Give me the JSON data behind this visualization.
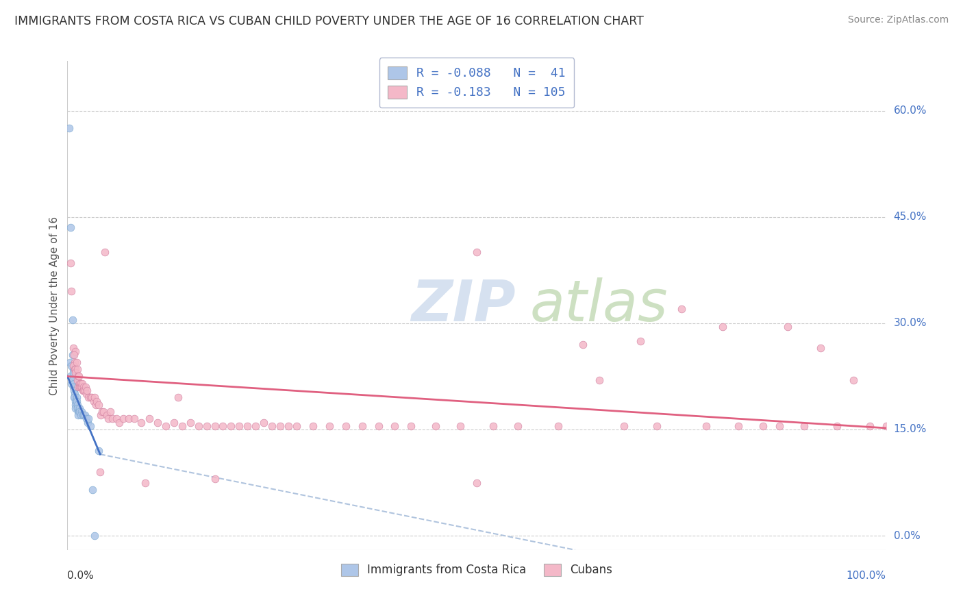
{
  "title": "IMMIGRANTS FROM COSTA RICA VS CUBAN CHILD POVERTY UNDER THE AGE OF 16 CORRELATION CHART",
  "source": "Source: ZipAtlas.com",
  "ylabel": "Child Poverty Under the Age of 16",
  "xlim": [
    0.0,
    1.0
  ],
  "ylim": [
    -0.02,
    0.67
  ],
  "yticks": [
    0.0,
    0.15,
    0.3,
    0.45,
    0.6
  ],
  "ytick_labels": [
    "0.0%",
    "15.0%",
    "30.0%",
    "45.0%",
    "60.0%"
  ],
  "xtick_labels": [
    "0.0%",
    "100.0%"
  ],
  "legend_labels": [
    "Immigrants from Costa Rica",
    "Cubans"
  ],
  "blue_R": -0.088,
  "blue_N": 41,
  "pink_R": -0.183,
  "pink_N": 105,
  "blue_color": "#aec6e8",
  "pink_color": "#f4b8c8",
  "blue_line_color": "#4472c4",
  "pink_line_color": "#e06080",
  "dash_color": "#b0c4de",
  "background_color": "#ffffff",
  "grid_color": "#cccccc",
  "blue_scatter": [
    [
      0.002,
      0.575
    ],
    [
      0.004,
      0.435
    ],
    [
      0.006,
      0.305
    ],
    [
      0.003,
      0.245
    ],
    [
      0.006,
      0.255
    ],
    [
      0.004,
      0.225
    ],
    [
      0.007,
      0.235
    ],
    [
      0.005,
      0.215
    ],
    [
      0.005,
      0.24
    ],
    [
      0.007,
      0.23
    ],
    [
      0.006,
      0.22
    ],
    [
      0.008,
      0.215
    ],
    [
      0.007,
      0.21
    ],
    [
      0.008,
      0.205
    ],
    [
      0.009,
      0.2
    ],
    [
      0.009,
      0.195
    ],
    [
      0.008,
      0.195
    ],
    [
      0.01,
      0.19
    ],
    [
      0.01,
      0.185
    ],
    [
      0.011,
      0.195
    ],
    [
      0.01,
      0.18
    ],
    [
      0.011,
      0.19
    ],
    [
      0.012,
      0.185
    ],
    [
      0.012,
      0.18
    ],
    [
      0.013,
      0.175
    ],
    [
      0.014,
      0.175
    ],
    [
      0.013,
      0.17
    ],
    [
      0.015,
      0.18
    ],
    [
      0.015,
      0.175
    ],
    [
      0.017,
      0.175
    ],
    [
      0.016,
      0.17
    ],
    [
      0.019,
      0.17
    ],
    [
      0.02,
      0.17
    ],
    [
      0.021,
      0.17
    ],
    [
      0.023,
      0.165
    ],
    [
      0.025,
      0.16
    ],
    [
      0.026,
      0.165
    ],
    [
      0.028,
      0.155
    ],
    [
      0.031,
      0.065
    ],
    [
      0.033,
      0.0
    ],
    [
      0.038,
      0.12
    ]
  ],
  "pink_scatter": [
    [
      0.004,
      0.385
    ],
    [
      0.005,
      0.345
    ],
    [
      0.007,
      0.265
    ],
    [
      0.01,
      0.26
    ],
    [
      0.008,
      0.255
    ],
    [
      0.009,
      0.245
    ],
    [
      0.007,
      0.24
    ],
    [
      0.011,
      0.245
    ],
    [
      0.009,
      0.235
    ],
    [
      0.01,
      0.235
    ],
    [
      0.01,
      0.23
    ],
    [
      0.012,
      0.235
    ],
    [
      0.012,
      0.22
    ],
    [
      0.013,
      0.225
    ],
    [
      0.013,
      0.21
    ],
    [
      0.014,
      0.225
    ],
    [
      0.015,
      0.215
    ],
    [
      0.015,
      0.21
    ],
    [
      0.016,
      0.215
    ],
    [
      0.016,
      0.21
    ],
    [
      0.017,
      0.21
    ],
    [
      0.018,
      0.215
    ],
    [
      0.019,
      0.205
    ],
    [
      0.02,
      0.21
    ],
    [
      0.02,
      0.205
    ],
    [
      0.021,
      0.205
    ],
    [
      0.022,
      0.21
    ],
    [
      0.023,
      0.2
    ],
    [
      0.024,
      0.205
    ],
    [
      0.026,
      0.195
    ],
    [
      0.028,
      0.195
    ],
    [
      0.03,
      0.195
    ],
    [
      0.032,
      0.19
    ],
    [
      0.033,
      0.195
    ],
    [
      0.035,
      0.185
    ],
    [
      0.036,
      0.19
    ],
    [
      0.038,
      0.185
    ],
    [
      0.04,
      0.09
    ],
    [
      0.041,
      0.17
    ],
    [
      0.042,
      0.175
    ],
    [
      0.044,
      0.175
    ],
    [
      0.046,
      0.4
    ],
    [
      0.048,
      0.17
    ],
    [
      0.05,
      0.165
    ],
    [
      0.052,
      0.175
    ],
    [
      0.055,
      0.165
    ],
    [
      0.06,
      0.165
    ],
    [
      0.063,
      0.16
    ],
    [
      0.068,
      0.165
    ],
    [
      0.075,
      0.165
    ],
    [
      0.082,
      0.165
    ],
    [
      0.09,
      0.16
    ],
    [
      0.1,
      0.165
    ],
    [
      0.11,
      0.16
    ],
    [
      0.12,
      0.155
    ],
    [
      0.13,
      0.16
    ],
    [
      0.135,
      0.195
    ],
    [
      0.14,
      0.155
    ],
    [
      0.15,
      0.16
    ],
    [
      0.16,
      0.155
    ],
    [
      0.17,
      0.155
    ],
    [
      0.18,
      0.155
    ],
    [
      0.19,
      0.155
    ],
    [
      0.2,
      0.155
    ],
    [
      0.21,
      0.155
    ],
    [
      0.22,
      0.155
    ],
    [
      0.23,
      0.155
    ],
    [
      0.24,
      0.16
    ],
    [
      0.25,
      0.155
    ],
    [
      0.26,
      0.155
    ],
    [
      0.27,
      0.155
    ],
    [
      0.28,
      0.155
    ],
    [
      0.3,
      0.155
    ],
    [
      0.32,
      0.155
    ],
    [
      0.34,
      0.155
    ],
    [
      0.36,
      0.155
    ],
    [
      0.38,
      0.155
    ],
    [
      0.4,
      0.155
    ],
    [
      0.42,
      0.155
    ],
    [
      0.45,
      0.155
    ],
    [
      0.48,
      0.155
    ],
    [
      0.5,
      0.4
    ],
    [
      0.52,
      0.155
    ],
    [
      0.55,
      0.155
    ],
    [
      0.6,
      0.155
    ],
    [
      0.63,
      0.27
    ],
    [
      0.65,
      0.22
    ],
    [
      0.68,
      0.155
    ],
    [
      0.7,
      0.275
    ],
    [
      0.72,
      0.155
    ],
    [
      0.75,
      0.32
    ],
    [
      0.78,
      0.155
    ],
    [
      0.8,
      0.295
    ],
    [
      0.82,
      0.155
    ],
    [
      0.85,
      0.155
    ],
    [
      0.87,
      0.155
    ],
    [
      0.88,
      0.295
    ],
    [
      0.9,
      0.155
    ],
    [
      0.92,
      0.265
    ],
    [
      0.94,
      0.155
    ],
    [
      0.96,
      0.22
    ],
    [
      0.98,
      0.155
    ],
    [
      1.0,
      0.155
    ],
    [
      0.095,
      0.075
    ],
    [
      0.18,
      0.08
    ],
    [
      0.5,
      0.075
    ]
  ],
  "blue_line_x0": 0.0,
  "blue_line_x1": 0.04,
  "blue_line_y0": 0.225,
  "blue_line_y1": 0.115,
  "dash_line_x0": 0.04,
  "dash_line_x1": 0.62,
  "dash_line_y0": 0.115,
  "dash_line_y1": -0.02,
  "pink_line_x0": 0.0,
  "pink_line_x1": 1.0,
  "pink_line_y0": 0.225,
  "pink_line_y1": 0.152
}
